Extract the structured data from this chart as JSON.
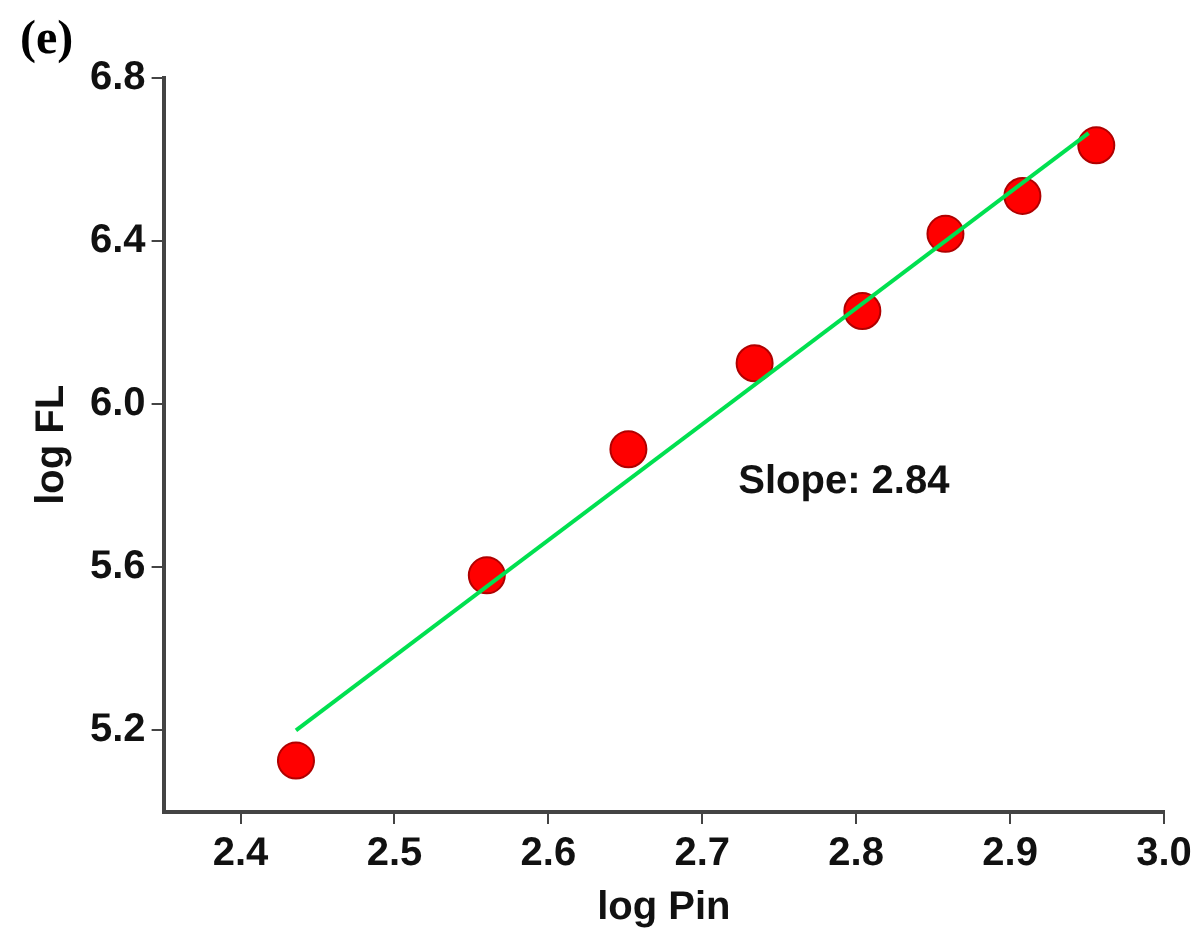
{
  "chart_data": {
    "type": "scatter",
    "title": "(e)",
    "xlabel": "log Pin",
    "ylabel": "log FL",
    "series": [
      {
        "marker": "circle",
        "color": "#ff0000",
        "x": [
          2.436,
          2.56,
          2.652,
          2.734,
          2.804,
          2.858,
          2.908,
          2.956
        ],
        "values": [
          5.126,
          5.58,
          5.889,
          6.1,
          6.228,
          6.417,
          6.51,
          6.634
        ]
      },
      {
        "type": "line",
        "marker": "none",
        "color": "#00e050",
        "x": [
          2.436,
          2.951
        ],
        "values": [
          5.2,
          6.664
        ]
      }
    ],
    "line_style": "solid",
    "xlim": [
      2.35,
      3.0
    ],
    "xticks": [
      {
        "value": 2.4,
        "label": "2.4"
      },
      {
        "value": 2.5,
        "label": "2.5"
      },
      {
        "value": 2.6,
        "label": "2.6"
      },
      {
        "value": 2.7,
        "label": "2.7"
      },
      {
        "value": 2.8,
        "label": "2.8"
      },
      {
        "value": 2.9,
        "label": "2.9"
      },
      {
        "value": 3.0,
        "label": "3.0"
      }
    ],
    "ylim": [
      5.0,
      6.8
    ],
    "yticks": [
      {
        "value": 5.2,
        "label": "5.2"
      },
      {
        "value": 5.6,
        "label": "5.6"
      },
      {
        "value": 6.0,
        "label": "6.0"
      },
      {
        "value": 6.4,
        "label": "6.4"
      },
      {
        "value": 6.8,
        "label": "6.8"
      }
    ],
    "grid": false,
    "legend": false,
    "annotations": [
      "Slope: 2.84"
    ]
  }
}
